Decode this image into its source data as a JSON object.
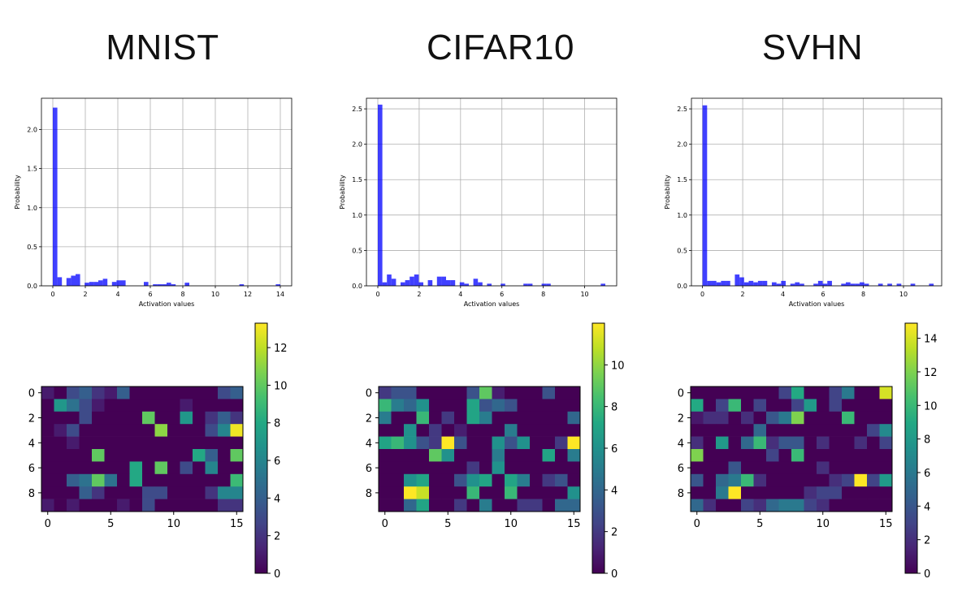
{
  "titles": [
    "MNIST",
    "CIFAR10",
    "SVHN"
  ],
  "chart_data": [
    {
      "type": "bar",
      "name": "MNIST histogram",
      "xlabel": "Activation values",
      "ylabel": "Probability",
      "xlim": [
        -0.7,
        14.7
      ],
      "ylim": [
        0,
        2.4
      ],
      "xticks": [
        0,
        2,
        4,
        6,
        8,
        10,
        12,
        14
      ],
      "yticks": [
        0.0,
        0.5,
        1.0,
        1.5,
        2.0
      ],
      "xtick_labels": [
        "0",
        "2",
        "4",
        "6",
        "8",
        "10",
        "12",
        "14"
      ],
      "ytick_labels": [
        "0.0",
        "0.5",
        "1.0",
        "1.5",
        "2.0"
      ],
      "bin_width": 0.28,
      "bins": [
        [
          0,
          2.28
        ],
        [
          0.28,
          0.11
        ],
        [
          0.84,
          0.1
        ],
        [
          1.12,
          0.13
        ],
        [
          1.4,
          0.15
        ],
        [
          1.96,
          0.04
        ],
        [
          2.24,
          0.05
        ],
        [
          2.52,
          0.05
        ],
        [
          2.8,
          0.07
        ],
        [
          3.08,
          0.09
        ],
        [
          3.64,
          0.05
        ],
        [
          3.92,
          0.07
        ],
        [
          4.2,
          0.07
        ],
        [
          5.6,
          0.05
        ],
        [
          6.16,
          0.02
        ],
        [
          6.44,
          0.02
        ],
        [
          6.72,
          0.02
        ],
        [
          7.0,
          0.04
        ],
        [
          7.28,
          0.02
        ],
        [
          8.12,
          0.04
        ],
        [
          11.48,
          0.02
        ],
        [
          13.72,
          0.02
        ]
      ]
    },
    {
      "type": "bar",
      "name": "CIFAR10 histogram",
      "xlabel": "Activation values",
      "ylabel": "Probability",
      "xlim": [
        -0.55,
        11.55
      ],
      "ylim": [
        0,
        2.65
      ],
      "xticks": [
        0,
        2,
        4,
        6,
        8,
        10
      ],
      "yticks": [
        0.0,
        0.5,
        1.0,
        1.5,
        2.0,
        2.5
      ],
      "xtick_labels": [
        "0",
        "2",
        "4",
        "6",
        "8",
        "10"
      ],
      "ytick_labels": [
        "0.0",
        "0.5",
        "1.0",
        "1.5",
        "2.0",
        "2.5"
      ],
      "bin_width": 0.22,
      "bins": [
        [
          0,
          2.56
        ],
        [
          0.22,
          0.05
        ],
        [
          0.44,
          0.16
        ],
        [
          0.66,
          0.1
        ],
        [
          1.1,
          0.05
        ],
        [
          1.32,
          0.08
        ],
        [
          1.54,
          0.13
        ],
        [
          1.76,
          0.16
        ],
        [
          1.98,
          0.05
        ],
        [
          2.42,
          0.08
        ],
        [
          2.86,
          0.13
        ],
        [
          3.08,
          0.13
        ],
        [
          3.3,
          0.08
        ],
        [
          3.52,
          0.08
        ],
        [
          3.96,
          0.05
        ],
        [
          4.18,
          0.03
        ],
        [
          4.62,
          0.1
        ],
        [
          4.84,
          0.05
        ],
        [
          5.28,
          0.03
        ],
        [
          5.94,
          0.03
        ],
        [
          7.04,
          0.03
        ],
        [
          7.26,
          0.03
        ],
        [
          7.92,
          0.03
        ],
        [
          8.14,
          0.03
        ],
        [
          10.78,
          0.03
        ]
      ]
    },
    {
      "type": "bar",
      "name": "SVHN histogram",
      "xlabel": "Activation values",
      "ylabel": "Probability",
      "xlim": [
        -0.55,
        11.9
      ],
      "ylim": [
        0,
        2.65
      ],
      "xticks": [
        0,
        2,
        4,
        6,
        8,
        10
      ],
      "yticks": [
        0.0,
        0.5,
        1.0,
        1.5,
        2.0,
        2.5
      ],
      "xtick_labels": [
        "0",
        "2",
        "4",
        "6",
        "8",
        "10"
      ],
      "ytick_labels": [
        "0.0",
        "0.5",
        "1.0",
        "1.5",
        "2.0",
        "2.5"
      ],
      "bin_width": 0.23,
      "bins": [
        [
          0,
          2.55
        ],
        [
          0.23,
          0.07
        ],
        [
          0.46,
          0.07
        ],
        [
          0.69,
          0.05
        ],
        [
          0.92,
          0.07
        ],
        [
          1.15,
          0.07
        ],
        [
          1.61,
          0.16
        ],
        [
          1.84,
          0.12
        ],
        [
          2.07,
          0.05
        ],
        [
          2.3,
          0.07
        ],
        [
          2.53,
          0.05
        ],
        [
          2.76,
          0.07
        ],
        [
          2.99,
          0.07
        ],
        [
          3.45,
          0.05
        ],
        [
          3.68,
          0.03
        ],
        [
          3.91,
          0.07
        ],
        [
          4.37,
          0.03
        ],
        [
          4.6,
          0.05
        ],
        [
          4.83,
          0.03
        ],
        [
          5.52,
          0.03
        ],
        [
          5.75,
          0.07
        ],
        [
          5.98,
          0.03
        ],
        [
          6.21,
          0.07
        ],
        [
          6.9,
          0.03
        ],
        [
          7.13,
          0.05
        ],
        [
          7.36,
          0.03
        ],
        [
          7.59,
          0.03
        ],
        [
          7.82,
          0.05
        ],
        [
          8.05,
          0.03
        ],
        [
          8.74,
          0.03
        ],
        [
          9.2,
          0.03
        ],
        [
          9.66,
          0.03
        ],
        [
          10.35,
          0.03
        ],
        [
          11.27,
          0.03
        ]
      ]
    },
    {
      "type": "heatmap",
      "name": "MNIST heatmap",
      "rows": 10,
      "cols": 16,
      "xticks": [
        0,
        5,
        10,
        15
      ],
      "yticks": [
        0,
        2,
        4,
        6,
        8
      ],
      "xtick_labels": [
        "0",
        "5",
        "10",
        "15"
      ],
      "ytick_labels": [
        "0",
        "2",
        "4",
        "6",
        "8"
      ],
      "vmin": 0,
      "vmax": 13.3,
      "colorbar_ticks": [
        0,
        2,
        4,
        6,
        8,
        10,
        12
      ],
      "colorbar_tick_labels": [
        "0",
        "2",
        "4",
        "6",
        "8",
        "10",
        "12"
      ],
      "values": [
        [
          1,
          0,
          3,
          4,
          2,
          1,
          4,
          0,
          0,
          0,
          0,
          0,
          0,
          0,
          3,
          4
        ],
        [
          0,
          7,
          5,
          3,
          1,
          0,
          0,
          0,
          0,
          0,
          0,
          1,
          0,
          0,
          0,
          0
        ],
        [
          0,
          0,
          0,
          3,
          0,
          0,
          0,
          0,
          10,
          0,
          0,
          7,
          0,
          2,
          4,
          2
        ],
        [
          0,
          1,
          3,
          0,
          0,
          0,
          0,
          0,
          0,
          11,
          0,
          0,
          0,
          3,
          6,
          13
        ],
        [
          0,
          0,
          1,
          0,
          0,
          0,
          0,
          0,
          0,
          0,
          0,
          0,
          0,
          0,
          0,
          0
        ],
        [
          0,
          0,
          0,
          0,
          10,
          0,
          0,
          0,
          0,
          0,
          0,
          0,
          8,
          4,
          0,
          10
        ],
        [
          0,
          0,
          0,
          0,
          0,
          0,
          0,
          8,
          0,
          10,
          0,
          3,
          0,
          6,
          0,
          0
        ],
        [
          0,
          0,
          4,
          5,
          10,
          5,
          0,
          8,
          0,
          0,
          0,
          0,
          0,
          0,
          0,
          9
        ],
        [
          0,
          0,
          0,
          4,
          2,
          0,
          0,
          0,
          3,
          3,
          0,
          0,
          0,
          2,
          6,
          6
        ],
        [
          1,
          0,
          1,
          0,
          0,
          0,
          1,
          0,
          3,
          0,
          0,
          0,
          0,
          0,
          2,
          2
        ]
      ]
    },
    {
      "type": "heatmap",
      "name": "CIFAR10 heatmap",
      "rows": 10,
      "cols": 16,
      "xticks": [
        0,
        5,
        10,
        15
      ],
      "yticks": [
        0,
        2,
        4,
        6,
        8
      ],
      "xtick_labels": [
        "0",
        "5",
        "10",
        "15"
      ],
      "ytick_labels": [
        "0",
        "2",
        "4",
        "6",
        "8"
      ],
      "vmin": 0,
      "vmax": 12,
      "colorbar_ticks": [
        0,
        2,
        4,
        6,
        8,
        10
      ],
      "colorbar_tick_labels": [
        "0",
        "2",
        "4",
        "6",
        "8",
        "10"
      ],
      "values": [
        [
          2,
          3,
          3,
          0,
          0,
          0,
          0,
          3,
          9,
          1,
          0,
          0,
          0,
          3,
          0,
          0
        ],
        [
          8,
          5,
          4,
          6,
          0,
          0,
          0,
          7,
          3,
          4,
          3,
          0,
          0,
          0,
          0,
          0
        ],
        [
          5,
          0,
          0,
          8,
          0,
          2,
          0,
          7,
          5,
          0,
          0,
          0,
          0,
          0,
          0,
          4
        ],
        [
          0,
          0,
          6,
          0,
          2,
          0,
          1,
          0,
          0,
          0,
          5,
          0,
          0,
          0,
          0,
          0
        ],
        [
          7,
          8,
          6,
          3,
          2,
          12,
          3,
          0,
          0,
          6,
          3,
          6,
          0,
          0,
          2,
          12
        ],
        [
          0,
          0,
          0,
          0,
          9,
          6,
          0,
          0,
          0,
          5,
          0,
          0,
          0,
          7,
          0,
          5
        ],
        [
          0,
          0,
          0,
          0,
          0,
          0,
          0,
          2,
          0,
          6,
          0,
          0,
          0,
          0,
          0,
          0
        ],
        [
          0,
          0,
          6,
          7,
          0,
          0,
          3,
          6,
          7,
          0,
          7,
          5,
          0,
          2,
          3,
          0
        ],
        [
          0,
          0,
          12,
          11,
          0,
          0,
          0,
          8,
          0,
          0,
          8,
          0,
          0,
          0,
          0,
          6
        ],
        [
          0,
          0,
          4,
          7,
          0,
          0,
          2,
          0,
          5,
          0,
          0,
          2,
          2,
          0,
          4,
          4
        ]
      ]
    },
    {
      "type": "heatmap",
      "name": "SVHN heatmap",
      "rows": 10,
      "cols": 16,
      "xticks": [
        0,
        5,
        10,
        15
      ],
      "yticks": [
        0,
        2,
        4,
        6,
        8
      ],
      "xtick_labels": [
        "0",
        "5",
        "10",
        "15"
      ],
      "ytick_labels": [
        "0",
        "2",
        "4",
        "6",
        "8"
      ],
      "vmin": 0,
      "vmax": 14.9,
      "colorbar_ticks": [
        0,
        2,
        4,
        6,
        8,
        10,
        12,
        14
      ],
      "colorbar_tick_labels": [
        "0",
        "2",
        "4",
        "6",
        "8",
        "10",
        "12",
        "14"
      ],
      "values": [
        [
          0,
          0,
          0,
          0,
          0,
          0,
          0,
          3,
          9,
          0,
          0,
          3,
          6,
          0,
          0,
          14
        ],
        [
          9,
          0,
          3,
          10,
          0,
          3,
          0,
          0,
          3,
          8,
          0,
          3,
          0,
          0,
          0,
          0
        ],
        [
          1,
          2,
          2,
          0,
          2,
          0,
          4,
          6,
          12,
          0,
          0,
          0,
          10,
          0,
          0,
          0
        ],
        [
          0,
          0,
          0,
          0,
          0,
          5,
          0,
          0,
          0,
          0,
          0,
          0,
          0,
          0,
          3,
          7
        ],
        [
          2,
          0,
          8,
          0,
          5,
          10,
          2,
          4,
          4,
          0,
          2,
          0,
          0,
          2,
          0,
          3
        ],
        [
          12,
          0,
          0,
          0,
          0,
          0,
          3,
          0,
          10,
          0,
          0,
          0,
          0,
          0,
          0,
          0
        ],
        [
          0,
          0,
          0,
          4,
          0,
          0,
          0,
          0,
          0,
          0,
          2,
          0,
          0,
          0,
          0,
          0
        ],
        [
          4,
          0,
          5,
          6,
          10,
          2,
          0,
          0,
          0,
          0,
          0,
          2,
          3,
          15,
          3,
          8
        ],
        [
          0,
          0,
          6,
          15,
          0,
          0,
          0,
          0,
          0,
          2,
          3,
          3,
          0,
          0,
          0,
          0
        ],
        [
          5,
          2,
          0,
          0,
          3,
          2,
          5,
          6,
          6,
          3,
          2,
          0,
          0,
          0,
          0,
          0
        ]
      ]
    }
  ]
}
